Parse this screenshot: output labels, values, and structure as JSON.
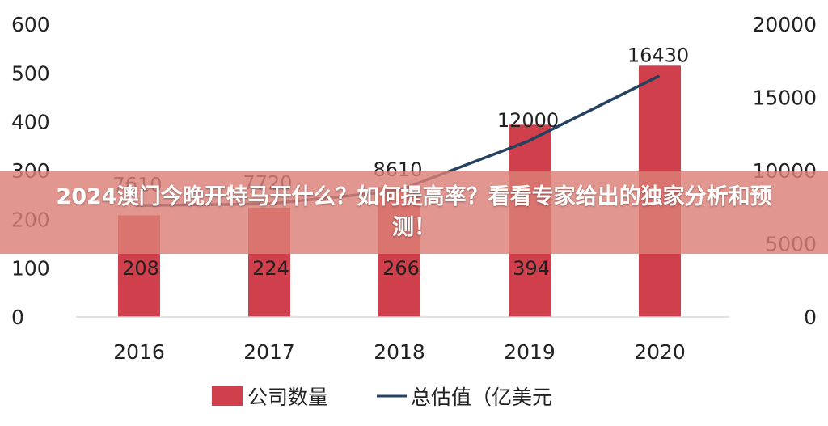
{
  "banner": {
    "title": "2024澳门今晚开特马开什么？如何提高率？看看专家给出的独家分析和预测！"
  },
  "colors": {
    "bar": "#cf3f4c",
    "line": "#24415f",
    "banner": "#da8078"
  },
  "chart_data": {
    "type": "bar",
    "categories": [
      "2016",
      "2017",
      "2018",
      "2019",
      "2020"
    ],
    "series": [
      {
        "name": "公司数量",
        "type": "bar",
        "axis": "left",
        "values": [
          208,
          224,
          266,
          394,
          515
        ],
        "labels": [
          "208",
          "224",
          "266",
          "394",
          ""
        ]
      },
      {
        "name": "总估值（亿美元）",
        "type": "line",
        "axis": "right",
        "values": [
          7610,
          7720,
          8610,
          12000,
          16430
        ],
        "labels": [
          "7610",
          "7720",
          "8610",
          "12000",
          "16430"
        ]
      }
    ],
    "y_left": {
      "min": 0,
      "max": 600,
      "ticks": [
        "0",
        "100",
        "200",
        "300",
        "400",
        "500",
        "600"
      ]
    },
    "y_right": {
      "min": 0,
      "max": 20000,
      "ticks": [
        "0",
        "5000",
        "10000",
        "15000",
        "20000"
      ]
    },
    "grid": false,
    "legend": "bottom",
    "legend_items": [
      "公司数量",
      "总估值（亿美元"
    ]
  }
}
